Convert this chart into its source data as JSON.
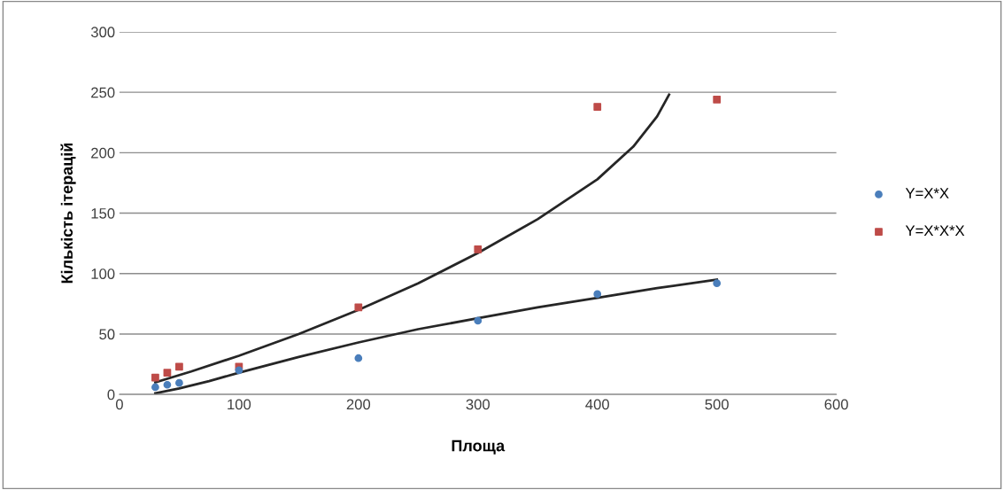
{
  "chart_data": {
    "type": "scatter",
    "xlabel": "Площа",
    "ylabel": "Кількість ітерацій",
    "xlim": [
      0,
      600
    ],
    "xticks": [
      0,
      100,
      200,
      300,
      400,
      500,
      600
    ],
    "ylim": [
      0,
      300
    ],
    "yticks": [
      0,
      50,
      100,
      150,
      200,
      250,
      300
    ],
    "grid": "y",
    "legend": "right",
    "series": [
      {
        "name": "Y=X*X",
        "color": "#4a7ebb",
        "marker": "circle",
        "x": [
          30,
          40,
          50,
          100,
          200,
          300,
          400,
          500
        ],
        "values": [
          6,
          8,
          9.5,
          20,
          30,
          61,
          83,
          92
        ]
      },
      {
        "name": "Y=X*X*X",
        "color": "#be4b48",
        "marker": "square",
        "x": [
          30,
          40,
          50,
          100,
          200,
          300,
          400,
          500
        ],
        "values": [
          14,
          18,
          23,
          23,
          72,
          120,
          238,
          244
        ]
      },
      {
        "type": "line",
        "color": "#262626",
        "marker": "none",
        "x": [
          30,
          60,
          100,
          150,
          200,
          250,
          300,
          350,
          400,
          430,
          450,
          460
        ],
        "values": [
          10,
          19,
          32,
          50,
          70,
          92,
          117,
          145,
          178,
          205,
          230,
          248
        ]
      },
      {
        "type": "line",
        "color": "#262626",
        "marker": "none",
        "x": [
          30,
          50,
          75,
          100,
          150,
          200,
          250,
          300,
          350,
          400,
          450,
          500
        ],
        "values": [
          1,
          5,
          11,
          18,
          31,
          43,
          54,
          63,
          72,
          80,
          88,
          95
        ]
      }
    ]
  }
}
